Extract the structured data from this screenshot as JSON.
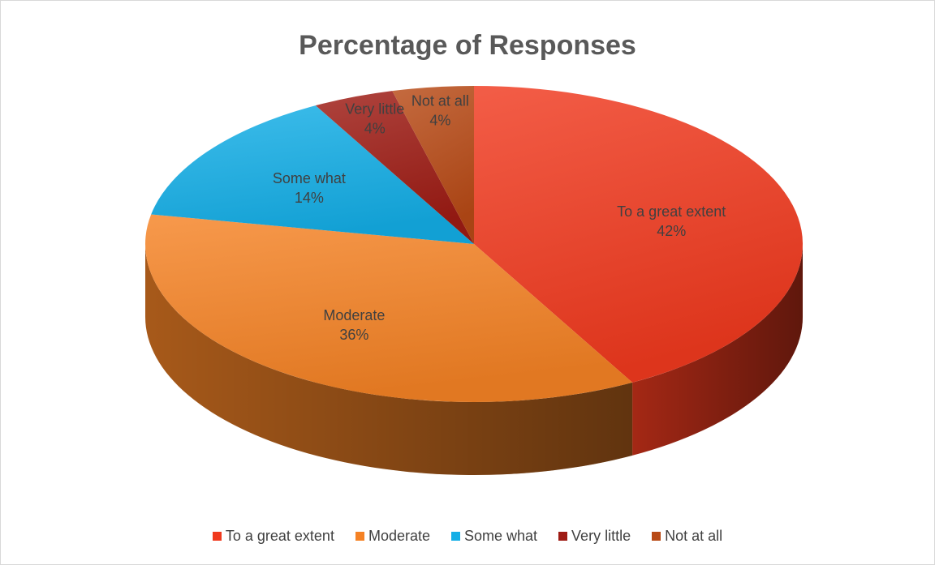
{
  "chart_data": {
    "type": "pie",
    "title": "Percentage of Responses",
    "categories": [
      "To a great extent",
      "Moderate",
      "Some what",
      "Very little",
      "Not at all"
    ],
    "values": [
      42,
      36,
      14,
      4,
      4
    ],
    "data_labels": [
      "42%",
      "36%",
      "14%",
      "4%",
      "4%"
    ],
    "colors": [
      "#f03a1e",
      "#f58225",
      "#14aee6",
      "#9e1b14",
      "#b84a16"
    ],
    "legend_position": "bottom",
    "style": "3d"
  }
}
